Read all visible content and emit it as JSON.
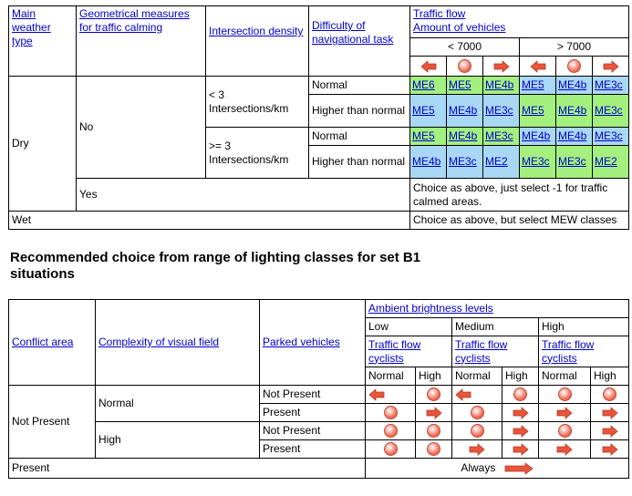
{
  "table1": {
    "h_weather": "Main weather type",
    "h_geo": "Geometrical measures for traffic calming",
    "h_density": "Intersection density",
    "h_difficulty": "Difficulty of navigational task",
    "h_traffic": "Traffic flow",
    "h_amount": "Amount of vehicles",
    "h_lt7000": "< 7000",
    "h_gt7000": "> 7000",
    "dry": "Dry",
    "no": "No",
    "yes": "Yes",
    "wet": "Wet",
    "dens_lt3": "< 3 Intersections/km",
    "dens_ge3": ">= 3 Intersections/km",
    "normal": "Normal",
    "higher": "Higher than normal",
    "yes_note": "Choice as above, just select -1 for traffic calmed areas.",
    "wet_note": "Choice as above, but select MEW classes",
    "rows": [
      [
        "ME6",
        "ME5",
        "ME4b",
        "ME5",
        "ME4b",
        "ME3c"
      ],
      [
        "ME5",
        "ME4b",
        "ME3c",
        "ME5",
        "ME4b",
        "ME3c"
      ],
      [
        "ME5",
        "ME4b",
        "ME3c",
        "ME4b",
        "ME4b",
        "ME3c"
      ],
      [
        "ME4b",
        "ME3c",
        "ME2",
        "ME3c",
        "ME3c",
        "ME2"
      ]
    ]
  },
  "heading": "Recommended choice from range of lighting classes for set B1 situations",
  "table2": {
    "h_conflict": "Conflict area",
    "h_complexity": "Complexity of visual field",
    "h_parked": "Parked vehicles",
    "h_ambient": "Ambient brightness levels",
    "low": "Low",
    "medium": "Medium",
    "high": "High",
    "tf": "Traffic flow",
    "cyc": "cyclists",
    "normal_col": "Normal",
    "high_col": "High",
    "not_present": "Not Present",
    "present": "Present",
    "normal": "Normal",
    "high_row": "High",
    "always": "Always"
  },
  "colors": {
    "blue_cell": "#a9d8f5",
    "green_cell": "#a3f07f",
    "link": "#0000cc",
    "arrow": "#e8553a"
  }
}
